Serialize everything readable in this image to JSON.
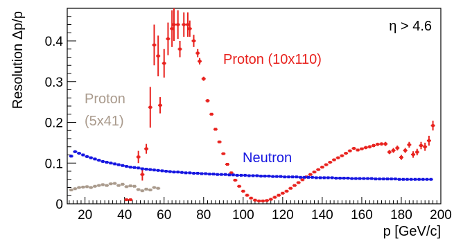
{
  "chart_data": {
    "type": "scatter",
    "title": "",
    "xlabel": "p [GeV/c]",
    "ylabel": "Resolution Δp/p",
    "xlim": [
      11,
      200
    ],
    "ylim": [
      0,
      0.48
    ],
    "x_ticks": [
      "20",
      "40",
      "60",
      "80",
      "100",
      "120",
      "140",
      "160",
      "180",
      "200"
    ],
    "y_ticks": [
      "0",
      "0.1",
      "0.2",
      "0.3",
      "0.4"
    ],
    "annotations": [
      {
        "id": "cut",
        "text": "η > 4.6"
      },
      {
        "id": "proton-10x110",
        "text": "Proton (10x110)",
        "color": "#e8221e"
      },
      {
        "id": "proton-5x41-line1",
        "text": "Proton",
        "color": "#a99a8c"
      },
      {
        "id": "proton-5x41-line2",
        "text": "(5x41)",
        "color": "#a99a8c"
      },
      {
        "id": "neutron",
        "text": "Neutron",
        "color": "#1515e0"
      }
    ],
    "series": [
      {
        "name": "Proton (10x110)",
        "color": "#e8221e",
        "points": [
          [
            41,
            0.01,
            0.002
          ],
          [
            43,
            0.01,
            0.002
          ],
          [
            47,
            0.115,
            0.015
          ],
          [
            49,
            0.072,
            0.015
          ],
          [
            51,
            0.135,
            0.012
          ],
          [
            53,
            0.237,
            0.05
          ],
          [
            55,
            0.39,
            0.05
          ],
          [
            57,
            0.363,
            0.05
          ],
          [
            58,
            0.242,
            0.02
          ],
          [
            60,
            0.345,
            0.035
          ],
          [
            62,
            0.405,
            0.04
          ],
          [
            64,
            0.43,
            0.045
          ],
          [
            65,
            0.44,
            0.04
          ],
          [
            67,
            0.44,
            0.035
          ],
          [
            68,
            0.38,
            0.02
          ],
          [
            70,
            0.44,
            0.03
          ],
          [
            72,
            0.44,
            0.03
          ],
          [
            73,
            0.43,
            0.02
          ],
          [
            75,
            0.4,
            0.015
          ],
          [
            77,
            0.37,
            0.01
          ],
          [
            78,
            0.35,
            0.008
          ],
          [
            80,
            0.307,
            0.005
          ],
          [
            82,
            0.253,
            0.004
          ],
          [
            84,
            0.22,
            0.003
          ],
          [
            86,
            0.183,
            0.003
          ],
          [
            88,
            0.152,
            0.003
          ],
          [
            90,
            0.123,
            0.002
          ],
          [
            92,
            0.097,
            0.002
          ],
          [
            94,
            0.076,
            0.002
          ],
          [
            96,
            0.058,
            0.002
          ],
          [
            98,
            0.043,
            0.002
          ],
          [
            100,
            0.031,
            0.002
          ],
          [
            102,
            0.021,
            0.002
          ],
          [
            104,
            0.014,
            0.002
          ],
          [
            106,
            0.009,
            0.002
          ],
          [
            108,
            0.007,
            0.002
          ],
          [
            110,
            0.007,
            0.002
          ],
          [
            112,
            0.008,
            0.002
          ],
          [
            114,
            0.011,
            0.002
          ],
          [
            116,
            0.016,
            0.002
          ],
          [
            118,
            0.021,
            0.002
          ],
          [
            120,
            0.026,
            0.002
          ],
          [
            122,
            0.031,
            0.002
          ],
          [
            124,
            0.038,
            0.002
          ],
          [
            126,
            0.045,
            0.002
          ],
          [
            128,
            0.052,
            0.002
          ],
          [
            130,
            0.059,
            0.002
          ],
          [
            132,
            0.066,
            0.002
          ],
          [
            134,
            0.072,
            0.002
          ],
          [
            136,
            0.078,
            0.002
          ],
          [
            138,
            0.084,
            0.002
          ],
          [
            140,
            0.09,
            0.002
          ],
          [
            142,
            0.096,
            0.002
          ],
          [
            144,
            0.102,
            0.002
          ],
          [
            146,
            0.108,
            0.002
          ],
          [
            148,
            0.113,
            0.002
          ],
          [
            150,
            0.118,
            0.002
          ],
          [
            152,
            0.124,
            0.002
          ],
          [
            154,
            0.13,
            0.003
          ],
          [
            156,
            0.136,
            0.003
          ],
          [
            158,
            0.132,
            0.003
          ],
          [
            160,
            0.135,
            0.003
          ],
          [
            162,
            0.138,
            0.004
          ],
          [
            164,
            0.14,
            0.004
          ],
          [
            166,
            0.143,
            0.004
          ],
          [
            168,
            0.146,
            0.004
          ],
          [
            170,
            0.147,
            0.004
          ],
          [
            172,
            0.147,
            0.005
          ],
          [
            174,
            0.127,
            0.005
          ],
          [
            176,
            0.131,
            0.006
          ],
          [
            178,
            0.137,
            0.006
          ],
          [
            180,
            0.114,
            0.006
          ],
          [
            182,
            0.131,
            0.006
          ],
          [
            184,
            0.145,
            0.007
          ],
          [
            186,
            0.121,
            0.008
          ],
          [
            188,
            0.127,
            0.008
          ],
          [
            190,
            0.143,
            0.009
          ],
          [
            192,
            0.14,
            0.01
          ],
          [
            194,
            0.155,
            0.012
          ],
          [
            196,
            0.192,
            0.012
          ]
        ]
      },
      {
        "name": "Proton (5x41)",
        "color": "#a99a8c",
        "points": [
          [
            13,
            0.034
          ],
          [
            15,
            0.037
          ],
          [
            17,
            0.04
          ],
          [
            19,
            0.041
          ],
          [
            21,
            0.042
          ],
          [
            23,
            0.04
          ],
          [
            25,
            0.043
          ],
          [
            27,
            0.045
          ],
          [
            29,
            0.047
          ],
          [
            31,
            0.045
          ],
          [
            33,
            0.049
          ],
          [
            35,
            0.05
          ],
          [
            37,
            0.045
          ],
          [
            39,
            0.048
          ],
          [
            41,
            0.042
          ],
          [
            43,
            0.044
          ],
          [
            45,
            0.043
          ],
          [
            47,
            0.035
          ],
          [
            49,
            0.032
          ],
          [
            51,
            0.036
          ],
          [
            53,
            0.034
          ],
          [
            55,
            0.04
          ],
          [
            57,
            0.038
          ]
        ]
      },
      {
        "name": "Neutron",
        "color": "#1515e0",
        "points": [
          [
            13,
            0.117
          ],
          [
            15,
            0.128
          ],
          [
            17,
            0.124
          ],
          [
            19,
            0.12
          ],
          [
            21,
            0.116
          ],
          [
            23,
            0.113
          ],
          [
            25,
            0.11
          ],
          [
            27,
            0.107
          ],
          [
            29,
            0.104
          ],
          [
            31,
            0.102
          ],
          [
            33,
            0.1
          ],
          [
            35,
            0.098
          ],
          [
            37,
            0.096
          ],
          [
            39,
            0.094
          ],
          [
            41,
            0.092
          ],
          [
            43,
            0.09
          ],
          [
            45,
            0.089
          ],
          [
            47,
            0.088
          ],
          [
            49,
            0.086
          ],
          [
            51,
            0.085
          ],
          [
            53,
            0.084
          ],
          [
            55,
            0.083
          ],
          [
            57,
            0.082
          ],
          [
            59,
            0.081
          ],
          [
            61,
            0.08
          ],
          [
            63,
            0.079
          ],
          [
            65,
            0.078
          ],
          [
            67,
            0.078
          ],
          [
            69,
            0.077
          ],
          [
            71,
            0.076
          ],
          [
            73,
            0.076
          ],
          [
            75,
            0.075
          ],
          [
            77,
            0.075
          ],
          [
            79,
            0.074
          ],
          [
            81,
            0.074
          ],
          [
            83,
            0.073
          ],
          [
            85,
            0.073
          ],
          [
            87,
            0.072
          ],
          [
            89,
            0.072
          ],
          [
            91,
            0.072
          ],
          [
            93,
            0.071
          ],
          [
            95,
            0.071
          ],
          [
            97,
            0.07
          ],
          [
            99,
            0.07
          ],
          [
            101,
            0.07
          ],
          [
            103,
            0.069
          ],
          [
            105,
            0.069
          ],
          [
            107,
            0.069
          ],
          [
            109,
            0.068
          ],
          [
            111,
            0.068
          ],
          [
            113,
            0.068
          ],
          [
            115,
            0.067
          ],
          [
            117,
            0.067
          ],
          [
            119,
            0.067
          ],
          [
            121,
            0.066
          ],
          [
            123,
            0.066
          ],
          [
            125,
            0.066
          ],
          [
            127,
            0.066
          ],
          [
            129,
            0.065
          ],
          [
            131,
            0.065
          ],
          [
            133,
            0.065
          ],
          [
            135,
            0.065
          ],
          [
            137,
            0.064
          ],
          [
            139,
            0.064
          ],
          [
            141,
            0.064
          ],
          [
            143,
            0.064
          ],
          [
            145,
            0.064
          ],
          [
            147,
            0.063
          ],
          [
            149,
            0.063
          ],
          [
            151,
            0.063
          ],
          [
            153,
            0.063
          ],
          [
            155,
            0.062
          ],
          [
            157,
            0.062
          ],
          [
            159,
            0.062
          ],
          [
            161,
            0.062
          ],
          [
            163,
            0.062
          ],
          [
            165,
            0.062
          ],
          [
            167,
            0.061
          ],
          [
            169,
            0.061
          ],
          [
            171,
            0.061
          ],
          [
            173,
            0.061
          ],
          [
            175,
            0.061
          ],
          [
            177,
            0.061
          ],
          [
            179,
            0.06
          ],
          [
            181,
            0.06
          ],
          [
            183,
            0.06
          ],
          [
            185,
            0.06
          ],
          [
            187,
            0.06
          ],
          [
            189,
            0.06
          ],
          [
            191,
            0.06
          ],
          [
            193,
            0.06
          ],
          [
            195,
            0.06
          ]
        ]
      }
    ]
  }
}
